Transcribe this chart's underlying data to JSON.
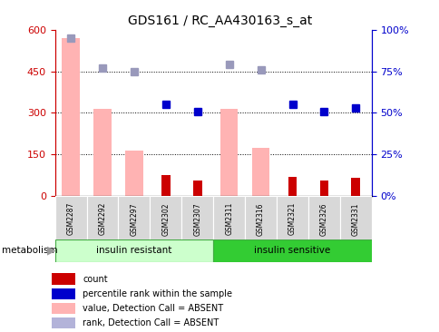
{
  "title": "GDS161 / RC_AA430163_s_at",
  "samples": [
    "GSM2287",
    "GSM2292",
    "GSM2297",
    "GSM2302",
    "GSM2307",
    "GSM2311",
    "GSM2316",
    "GSM2321",
    "GSM2326",
    "GSM2331"
  ],
  "pink_bars": [
    570,
    315,
    165,
    0,
    0,
    315,
    175,
    0,
    0,
    0
  ],
  "red_bars": [
    0,
    0,
    0,
    75,
    55,
    0,
    0,
    70,
    55,
    65
  ],
  "blue_squares_pct": [
    null,
    null,
    null,
    55,
    51,
    null,
    null,
    55,
    51,
    53
  ],
  "lavender_squares_pct": [
    95,
    77,
    75,
    null,
    null,
    79,
    76,
    null,
    null,
    null
  ],
  "ylim_left": [
    0,
    600
  ],
  "ylim_right": [
    0,
    100
  ],
  "yticks_left": [
    0,
    150,
    300,
    450,
    600
  ],
  "yticks_right": [
    0,
    25,
    50,
    75,
    100
  ],
  "legend_labels": [
    "count",
    "percentile rank within the sample",
    "value, Detection Call = ABSENT",
    "rank, Detection Call = ABSENT"
  ],
  "legend_colors": [
    "#cc0000",
    "#0000cc",
    "#ffb3b3",
    "#b3b3d9"
  ],
  "group_insulin_resistant": [
    0,
    1,
    2,
    3,
    4
  ],
  "group_insulin_sensitive": [
    5,
    6,
    7,
    8,
    9
  ],
  "color_ir": "#ccffcc",
  "color_is": "#33cc33",
  "color_pink_bar": "#ffb3b3",
  "color_red_bar": "#cc0000",
  "color_blue_sq": "#0000cc",
  "color_lavender_sq": "#9999bb",
  "left_axis_color": "#cc0000",
  "right_axis_color": "#0000cc",
  "metabolism_label": "metabolism"
}
